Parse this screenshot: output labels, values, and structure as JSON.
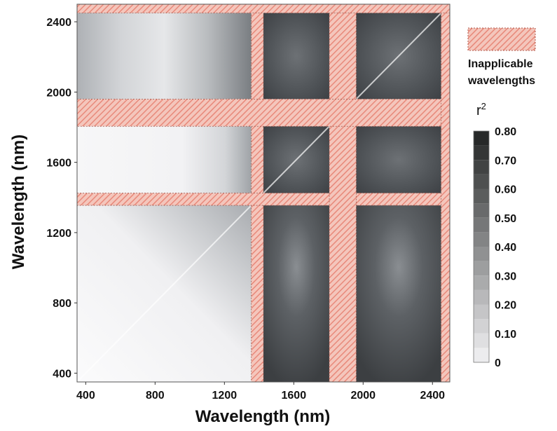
{
  "chart_data": {
    "type": "heatmap",
    "xlabel": "Wavelength (nm)",
    "ylabel": "Wavelength (nm)",
    "xlim": [
      350,
      2500
    ],
    "ylim": [
      350,
      2500
    ],
    "x_ticks": [
      400,
      800,
      1200,
      1600,
      2000,
      2400
    ],
    "y_ticks": [
      400,
      800,
      1200,
      1600,
      2000,
      2400
    ],
    "colorbar": {
      "title": "r",
      "title_superscript": "2",
      "ticks": [
        0,
        0.1,
        0.2,
        0.3,
        0.4,
        0.5,
        0.6,
        0.7,
        0.8
      ],
      "tick_labels": [
        "0",
        "0.10",
        "0.20",
        "0.30",
        "0.40",
        "0.50",
        "0.60",
        "0.70",
        "0.80"
      ],
      "range": [
        0,
        0.8
      ]
    },
    "legend": {
      "label_line1": "Inapplicable",
      "label_line2": "wavelengths",
      "placement": "top-right",
      "hatch_color": "#e8897a"
    },
    "inapplicable_bands_nm": [
      [
        1355,
        1425
      ],
      [
        1805,
        1960
      ],
      [
        2450,
        2500
      ]
    ],
    "regions": [
      {
        "x_range": [
          350,
          1355
        ],
        "y_range": [
          350,
          1355
        ],
        "value": 0.12
      },
      {
        "x_range": [
          1425,
          1805
        ],
        "y_range": [
          350,
          1355
        ],
        "value": 0.58
      },
      {
        "x_range": [
          1960,
          2450
        ],
        "y_range": [
          350,
          1355
        ],
        "value": 0.58
      },
      {
        "x_range": [
          350,
          1355
        ],
        "y_range": [
          1425,
          1805
        ],
        "value": 0.05
      },
      {
        "x_range": [
          1425,
          1805
        ],
        "y_range": [
          1425,
          1805
        ],
        "value": 0.5
      },
      {
        "x_range": [
          1960,
          2450
        ],
        "y_range": [
          1425,
          1805
        ],
        "value": 0.55
      },
      {
        "x_range": [
          350,
          1355
        ],
        "y_range": [
          1960,
          2450
        ],
        "value": 0.3
      },
      {
        "x_range": [
          1425,
          1805
        ],
        "y_range": [
          1960,
          2450
        ],
        "value": 0.55
      },
      {
        "x_range": [
          1960,
          2450
        ],
        "y_range": [
          1960,
          2450
        ],
        "value": 0.5
      }
    ],
    "colors": {
      "low": "#f3f3f5",
      "high": "#202222",
      "hatch": "#e8897a"
    }
  }
}
